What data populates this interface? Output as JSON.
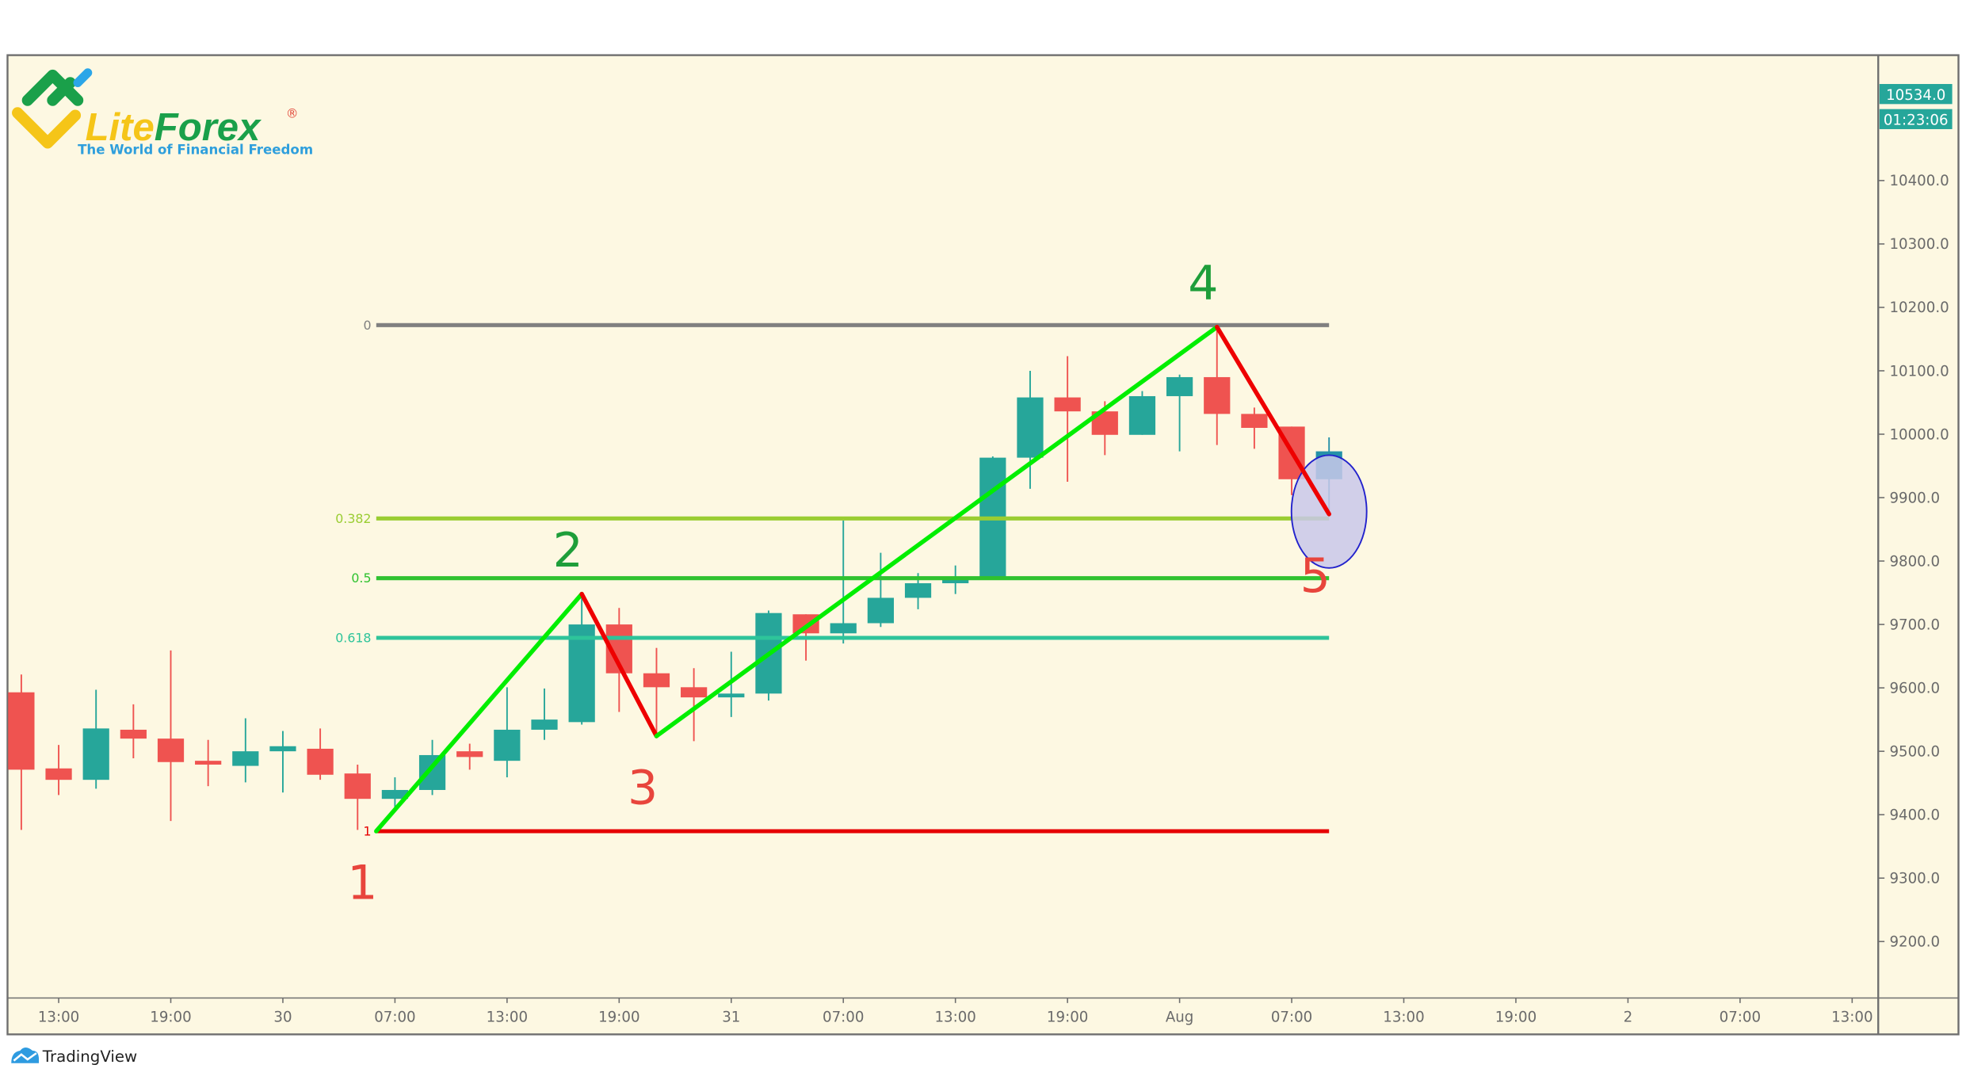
{
  "brand": {
    "logo_name": "LiteForex",
    "logo_part1": "Lite",
    "logo_part2": "Forex",
    "registered": "®",
    "tagline": "The World of Financial Freedom"
  },
  "footer": {
    "platform": "TradingView"
  },
  "price_axis": {
    "current_price": "10534.0",
    "countdown": "01:23:06",
    "ticks": [
      "10400.0",
      "10300.0",
      "10200.0",
      "10100.0",
      "10000.0",
      "9900.0",
      "9800.0",
      "9700.0",
      "9600.0",
      "9500.0",
      "9400.0",
      "9300.0",
      "9200.0"
    ]
  },
  "colors": {
    "background": "#fdf8e2",
    "up": "#26a69a",
    "down": "#ef5350",
    "last_candle": "#2591a8",
    "wave_up": "#00ee00",
    "wave_down": "#ee0000",
    "label_up": "#1e9e3a",
    "label_down": "#e8453c",
    "ellipse_fill": "#c9c8ea",
    "ellipse_stroke": "#2222cc"
  },
  "chart_data": {
    "type": "candlestick",
    "interval": "2h",
    "title": "",
    "ylim": [
      9100,
      10560
    ],
    "grid": false,
    "x_ticks": [
      {
        "label": "13:00",
        "time": "07-29 13:00"
      },
      {
        "label": "19:00",
        "time": "07-29 19:00"
      },
      {
        "label": "30",
        "time": "07-30 01:00"
      },
      {
        "label": "07:00",
        "time": "07-30 07:00"
      },
      {
        "label": "13:00",
        "time": "07-30 13:00"
      },
      {
        "label": "19:00",
        "time": "07-30 19:00"
      },
      {
        "label": "31",
        "time": "07-31 01:00"
      },
      {
        "label": "07:00",
        "time": "07-31 07:00"
      },
      {
        "label": "13:00",
        "time": "07-31 13:00"
      },
      {
        "label": "19:00",
        "time": "07-31 19:00"
      },
      {
        "label": "Aug",
        "time": "08-01 01:00"
      },
      {
        "label": "07:00",
        "time": "08-01 07:00"
      },
      {
        "label": "13:00",
        "time": "08-01 13:00"
      },
      {
        "label": "19:00",
        "time": "08-01 19:00"
      },
      {
        "label": "2",
        "time": "08-02 01:00"
      },
      {
        "label": "07:00",
        "time": "08-02 07:00"
      },
      {
        "label": "13:00",
        "time": "08-02 13:00"
      }
    ],
    "candles": [
      {
        "t": "07-29 11:00",
        "o": 9593,
        "h": 9621,
        "l": 9376,
        "c": 9471
      },
      {
        "t": "07-29 13:00",
        "o": 9473,
        "h": 9510,
        "l": 9431,
        "c": 9455
      },
      {
        "t": "07-29 15:00",
        "o": 9455,
        "h": 9597,
        "l": 9441,
        "c": 9536
      },
      {
        "t": "07-29 17:00",
        "o": 9534,
        "h": 9574,
        "l": 9489,
        "c": 9520
      },
      {
        "t": "07-29 19:00",
        "o": 9520,
        "h": 9659,
        "l": 9390,
        "c": 9483
      },
      {
        "t": "07-29 21:00",
        "o": 9485,
        "h": 9518,
        "l": 9445,
        "c": 9479
      },
      {
        "t": "07-29 23:00",
        "o": 9477,
        "h": 9552,
        "l": 9451,
        "c": 9500
      },
      {
        "t": "07-30 01:00",
        "o": 9500,
        "h": 9532,
        "l": 9435,
        "c": 9508
      },
      {
        "t": "07-30 03:00",
        "o": 9504,
        "h": 9536,
        "l": 9455,
        "c": 9463
      },
      {
        "t": "07-30 05:00",
        "o": 9465,
        "h": 9479,
        "l": 9376,
        "c": 9425
      },
      {
        "t": "07-30 07:00",
        "o": 9425,
        "h": 9459,
        "l": 9407,
        "c": 9439
      },
      {
        "t": "07-30 09:00",
        "o": 9439,
        "h": 9518,
        "l": 9431,
        "c": 9494
      },
      {
        "t": "07-30 11:00",
        "o": 9500,
        "h": 9512,
        "l": 9471,
        "c": 9491
      },
      {
        "t": "07-30 13:00",
        "o": 9485,
        "h": 9601,
        "l": 9459,
        "c": 9534
      },
      {
        "t": "07-30 15:00",
        "o": 9534,
        "h": 9599,
        "l": 9518,
        "c": 9550
      },
      {
        "t": "07-30 17:00",
        "o": 9546,
        "h": 9748,
        "l": 9542,
        "c": 9700
      },
      {
        "t": "07-30 19:00",
        "o": 9700,
        "h": 9726,
        "l": 9562,
        "c": 9623
      },
      {
        "t": "07-30 21:00",
        "o": 9623,
        "h": 9663,
        "l": 9524,
        "c": 9601
      },
      {
        "t": "07-30 23:00",
        "o": 9601,
        "h": 9631,
        "l": 9516,
        "c": 9585
      },
      {
        "t": "07-31 01:00",
        "o": 9585,
        "h": 9657,
        "l": 9554,
        "c": 9591
      },
      {
        "t": "07-31 03:00",
        "o": 9591,
        "h": 9722,
        "l": 9580,
        "c": 9718
      },
      {
        "t": "07-31 05:00",
        "o": 9716,
        "h": 9716,
        "l": 9643,
        "c": 9686
      },
      {
        "t": "07-31 07:00",
        "o": 9686,
        "h": 9864,
        "l": 9670,
        "c": 9702
      },
      {
        "t": "07-31 09:00",
        "o": 9702,
        "h": 9813,
        "l": 9696,
        "c": 9742
      },
      {
        "t": "07-31 11:00",
        "o": 9742,
        "h": 9781,
        "l": 9724,
        "c": 9765
      },
      {
        "t": "07-31 13:00",
        "o": 9765,
        "h": 9793,
        "l": 9748,
        "c": 9771
      },
      {
        "t": "07-31 15:00",
        "o": 9771,
        "h": 9965,
        "l": 9771,
        "c": 9963
      },
      {
        "t": "07-31 17:00",
        "o": 9963,
        "h": 10100,
        "l": 9914,
        "c": 10058
      },
      {
        "t": "07-31 19:00",
        "o": 10058,
        "h": 10123,
        "l": 9925,
        "c": 10036
      },
      {
        "t": "07-31 21:00",
        "o": 10036,
        "h": 10052,
        "l": 9967,
        "c": 9999
      },
      {
        "t": "07-31 23:00",
        "o": 9999,
        "h": 10068,
        "l": 9999,
        "c": 10060
      },
      {
        "t": "08-01 01:00",
        "o": 10060,
        "h": 10094,
        "l": 9973,
        "c": 10090
      },
      {
        "t": "08-01 03:00",
        "o": 10090,
        "h": 10167,
        "l": 9983,
        "c": 10032
      },
      {
        "t": "08-01 05:00",
        "o": 10032,
        "h": 10042,
        "l": 9977,
        "c": 10010
      },
      {
        "t": "08-01 07:00",
        "o": 10012,
        "h": 10012,
        "l": 9904,
        "c": 9929
      },
      {
        "t": "08-01 09:00",
        "o": 9929,
        "h": 9995,
        "l": 9870,
        "c": 9973
      }
    ],
    "fibonacci": {
      "start_time": "07-30 06:00",
      "end_time": "08-01 09:00",
      "price_at_0": 10172,
      "price_at_1": 9374,
      "levels": [
        {
          "ratio": 0,
          "label": "0",
          "color": "#808080"
        },
        {
          "ratio": 0.382,
          "label": "0.382",
          "color": "#9acd32"
        },
        {
          "ratio": 0.5,
          "label": "0.5",
          "color": "#2fc22f"
        },
        {
          "ratio": 0.618,
          "label": "0.618",
          "color": "#2ec49a"
        },
        {
          "ratio": 1,
          "label": "1",
          "color": "#e60000"
        }
      ]
    },
    "waves": [
      {
        "label": "1",
        "t": "07-30 06:00",
        "p": 9374,
        "dir": "low"
      },
      {
        "label": "2",
        "t": "07-30 17:00",
        "p": 9748,
        "dir": "high"
      },
      {
        "label": "3",
        "t": "07-30 21:00",
        "p": 9524,
        "dir": "low"
      },
      {
        "label": "4",
        "t": "08-01 03:00",
        "p": 10169,
        "dir": "high"
      },
      {
        "label": "5",
        "t": "08-01 09:00",
        "p": 9874,
        "dir": "low"
      }
    ],
    "highlight_ellipse": {
      "t": "08-01 09:00",
      "p": 9878
    }
  }
}
